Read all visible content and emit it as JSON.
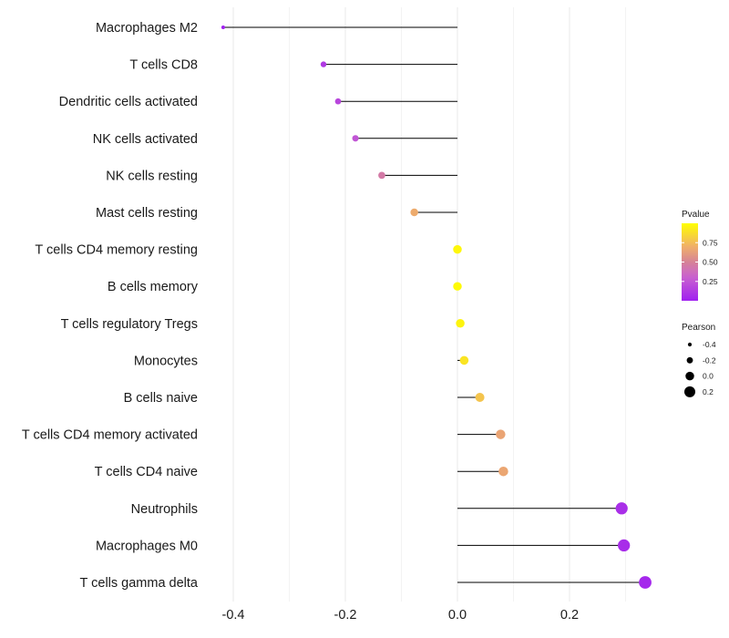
{
  "chart_data": {
    "type": "lollipop",
    "xlim": [
      -0.42,
      0.35
    ],
    "x_ticks": [
      -0.4,
      -0.2,
      0.0,
      0.2
    ],
    "x_tick_labels": [
      "-0.4",
      "-0.2",
      "0.0",
      "0.2"
    ],
    "minor_gridlines": [
      -0.3,
      -0.1,
      0.1,
      0.3
    ],
    "baseline": 0.0,
    "categories": [
      "Macrophages M2",
      "T cells CD8",
      "Dendritic cells activated",
      "NK cells activated",
      "NK cells resting",
      "Mast cells resting",
      "T cells CD4 memory resting",
      "B cells memory",
      "T cells regulatory  Tregs ",
      "Monocytes",
      "B cells naive",
      "T cells CD4 memory activated",
      "T cells CD4 naive",
      "Neutrophils",
      "Macrophages M0",
      "T cells gamma delta"
    ],
    "pearson": [
      -0.418,
      -0.239,
      -0.213,
      -0.182,
      -0.135,
      -0.077,
      0.0,
      0.0,
      0.005,
      0.012,
      0.04,
      0.077,
      0.082,
      0.293,
      0.297,
      0.335
    ],
    "pvalue": [
      0.01,
      0.12,
      0.18,
      0.25,
      0.45,
      0.68,
      0.97,
      0.98,
      0.96,
      0.9,
      0.78,
      0.65,
      0.66,
      0.07,
      0.06,
      0.04
    ],
    "legend_pvalue": {
      "title": "Pvalue",
      "range": [
        0.0,
        1.0
      ],
      "ticks": [
        0.25,
        0.5,
        0.75
      ],
      "tick_labels": [
        "0.25",
        "0.50",
        "0.75"
      ],
      "color_low": "#a020f0",
      "color_high": "#ffff00"
    },
    "legend_pearson": {
      "title": "Pearson",
      "values": [
        -0.4,
        -0.2,
        0.0,
        0.2
      ],
      "labels": [
        "-0.4",
        "-0.2",
        "0.0",
        "0.2"
      ]
    }
  }
}
